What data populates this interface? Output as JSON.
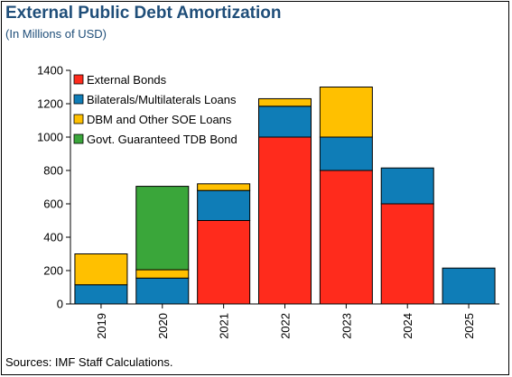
{
  "title": "External Public Debt Amortization",
  "subtitle": "(In Millions of USD)",
  "source": "Sources: IMF Staff Calculations.",
  "colors": {
    "External Bonds": "#ff2b1c",
    "Bilaterals/Multilaterals Loans": "#0f7db7",
    "DBM and Other SOE Loans": "#ffc000",
    "Govt. Guaranteed TDB Bond": "#3aa63a"
  },
  "chart_data": {
    "type": "bar",
    "stacked": true,
    "categories": [
      "2019",
      "2020",
      "2021",
      "2022",
      "2023",
      "2024",
      "2025"
    ],
    "series": [
      {
        "name": "External Bonds",
        "values": [
          0,
          0,
          500,
          1000,
          800,
          600,
          0
        ]
      },
      {
        "name": "Bilaterals/Multilaterals Loans",
        "values": [
          115,
          155,
          180,
          185,
          200,
          215,
          215
        ]
      },
      {
        "name": "DBM and Other SOE Loans",
        "values": [
          185,
          50,
          40,
          45,
          300,
          0,
          0
        ]
      },
      {
        "name": "Govt. Guaranteed TDB Bond",
        "values": [
          0,
          500,
          0,
          0,
          0,
          0,
          0
        ]
      }
    ],
    "yticks": [
      0,
      200,
      400,
      600,
      800,
      1000,
      1200,
      1400
    ],
    "ylim": [
      0,
      1400
    ],
    "grid": false,
    "legend_position": "top-left",
    "xtick_rotation": "vertical"
  }
}
